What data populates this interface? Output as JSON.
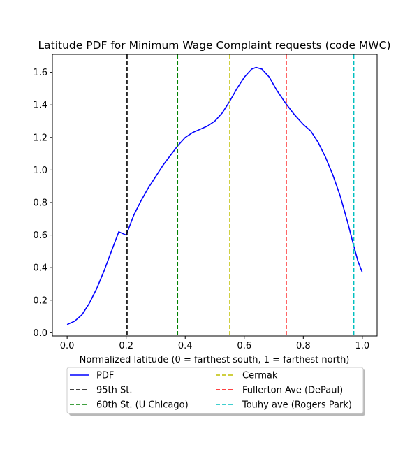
{
  "chart_data": {
    "type": "line",
    "title": "Latitude PDF for Minimum Wage Complaint  requests (code MWC)",
    "xlabel": "Normalized latitude (0 = farthest south, 1 = farthest north)",
    "ylabel": "",
    "xlim": [
      -0.05,
      1.05
    ],
    "ylim": [
      -0.02,
      1.71
    ],
    "xticks": [
      0.0,
      0.2,
      0.4,
      0.6,
      0.8,
      1.0
    ],
    "xtick_labels": [
      "0.0",
      "0.2",
      "0.4",
      "0.6",
      "0.8",
      "1.0"
    ],
    "yticks": [
      0.0,
      0.2,
      0.4,
      0.6,
      0.8,
      1.0,
      1.2,
      1.4,
      1.6
    ],
    "ytick_labels": [
      "0.0",
      "0.2",
      "0.4",
      "0.6",
      "0.8",
      "1.0",
      "1.2",
      "1.4",
      "1.6"
    ],
    "grid": false,
    "legend_position": "below chart, two columns",
    "series": [
      {
        "name": "PDF",
        "color": "#0000ff",
        "style": "solid",
        "x": [
          0.0,
          0.025,
          0.05,
          0.075,
          0.1,
          0.125,
          0.15,
          0.175,
          0.2,
          0.225,
          0.25,
          0.275,
          0.3,
          0.325,
          0.35,
          0.375,
          0.4,
          0.425,
          0.45,
          0.475,
          0.5,
          0.525,
          0.55,
          0.575,
          0.6,
          0.625,
          0.64,
          0.66,
          0.685,
          0.71,
          0.74,
          0.77,
          0.8,
          0.825,
          0.85,
          0.875,
          0.9,
          0.925,
          0.95,
          0.97,
          0.985,
          1.0
        ],
        "y": [
          0.05,
          0.07,
          0.11,
          0.18,
          0.27,
          0.38,
          0.5,
          0.62,
          0.6,
          0.72,
          0.81,
          0.89,
          0.96,
          1.03,
          1.09,
          1.15,
          1.2,
          1.23,
          1.25,
          1.27,
          1.3,
          1.35,
          1.42,
          1.5,
          1.57,
          1.62,
          1.63,
          1.62,
          1.57,
          1.49,
          1.41,
          1.34,
          1.28,
          1.24,
          1.17,
          1.08,
          0.97,
          0.84,
          0.68,
          0.54,
          0.44,
          0.37
        ]
      },
      {
        "name": "95th St.",
        "color": "#000000",
        "style": "dashed",
        "x": 0.203
      },
      {
        "name": "60th St. (U Chicago)",
        "color": "#008000",
        "style": "dashed",
        "x": 0.374
      },
      {
        "name": "Cermak",
        "color": "#bfbf00",
        "style": "dashed",
        "x": 0.551
      },
      {
        "name": "Fullerton Ave (DePaul)",
        "color": "#ff0000",
        "style": "dashed",
        "x": 0.742
      },
      {
        "name": "Touhy ave (Rogers Park)",
        "color": "#00bfbf",
        "style": "dashed",
        "x": 0.971
      }
    ]
  }
}
